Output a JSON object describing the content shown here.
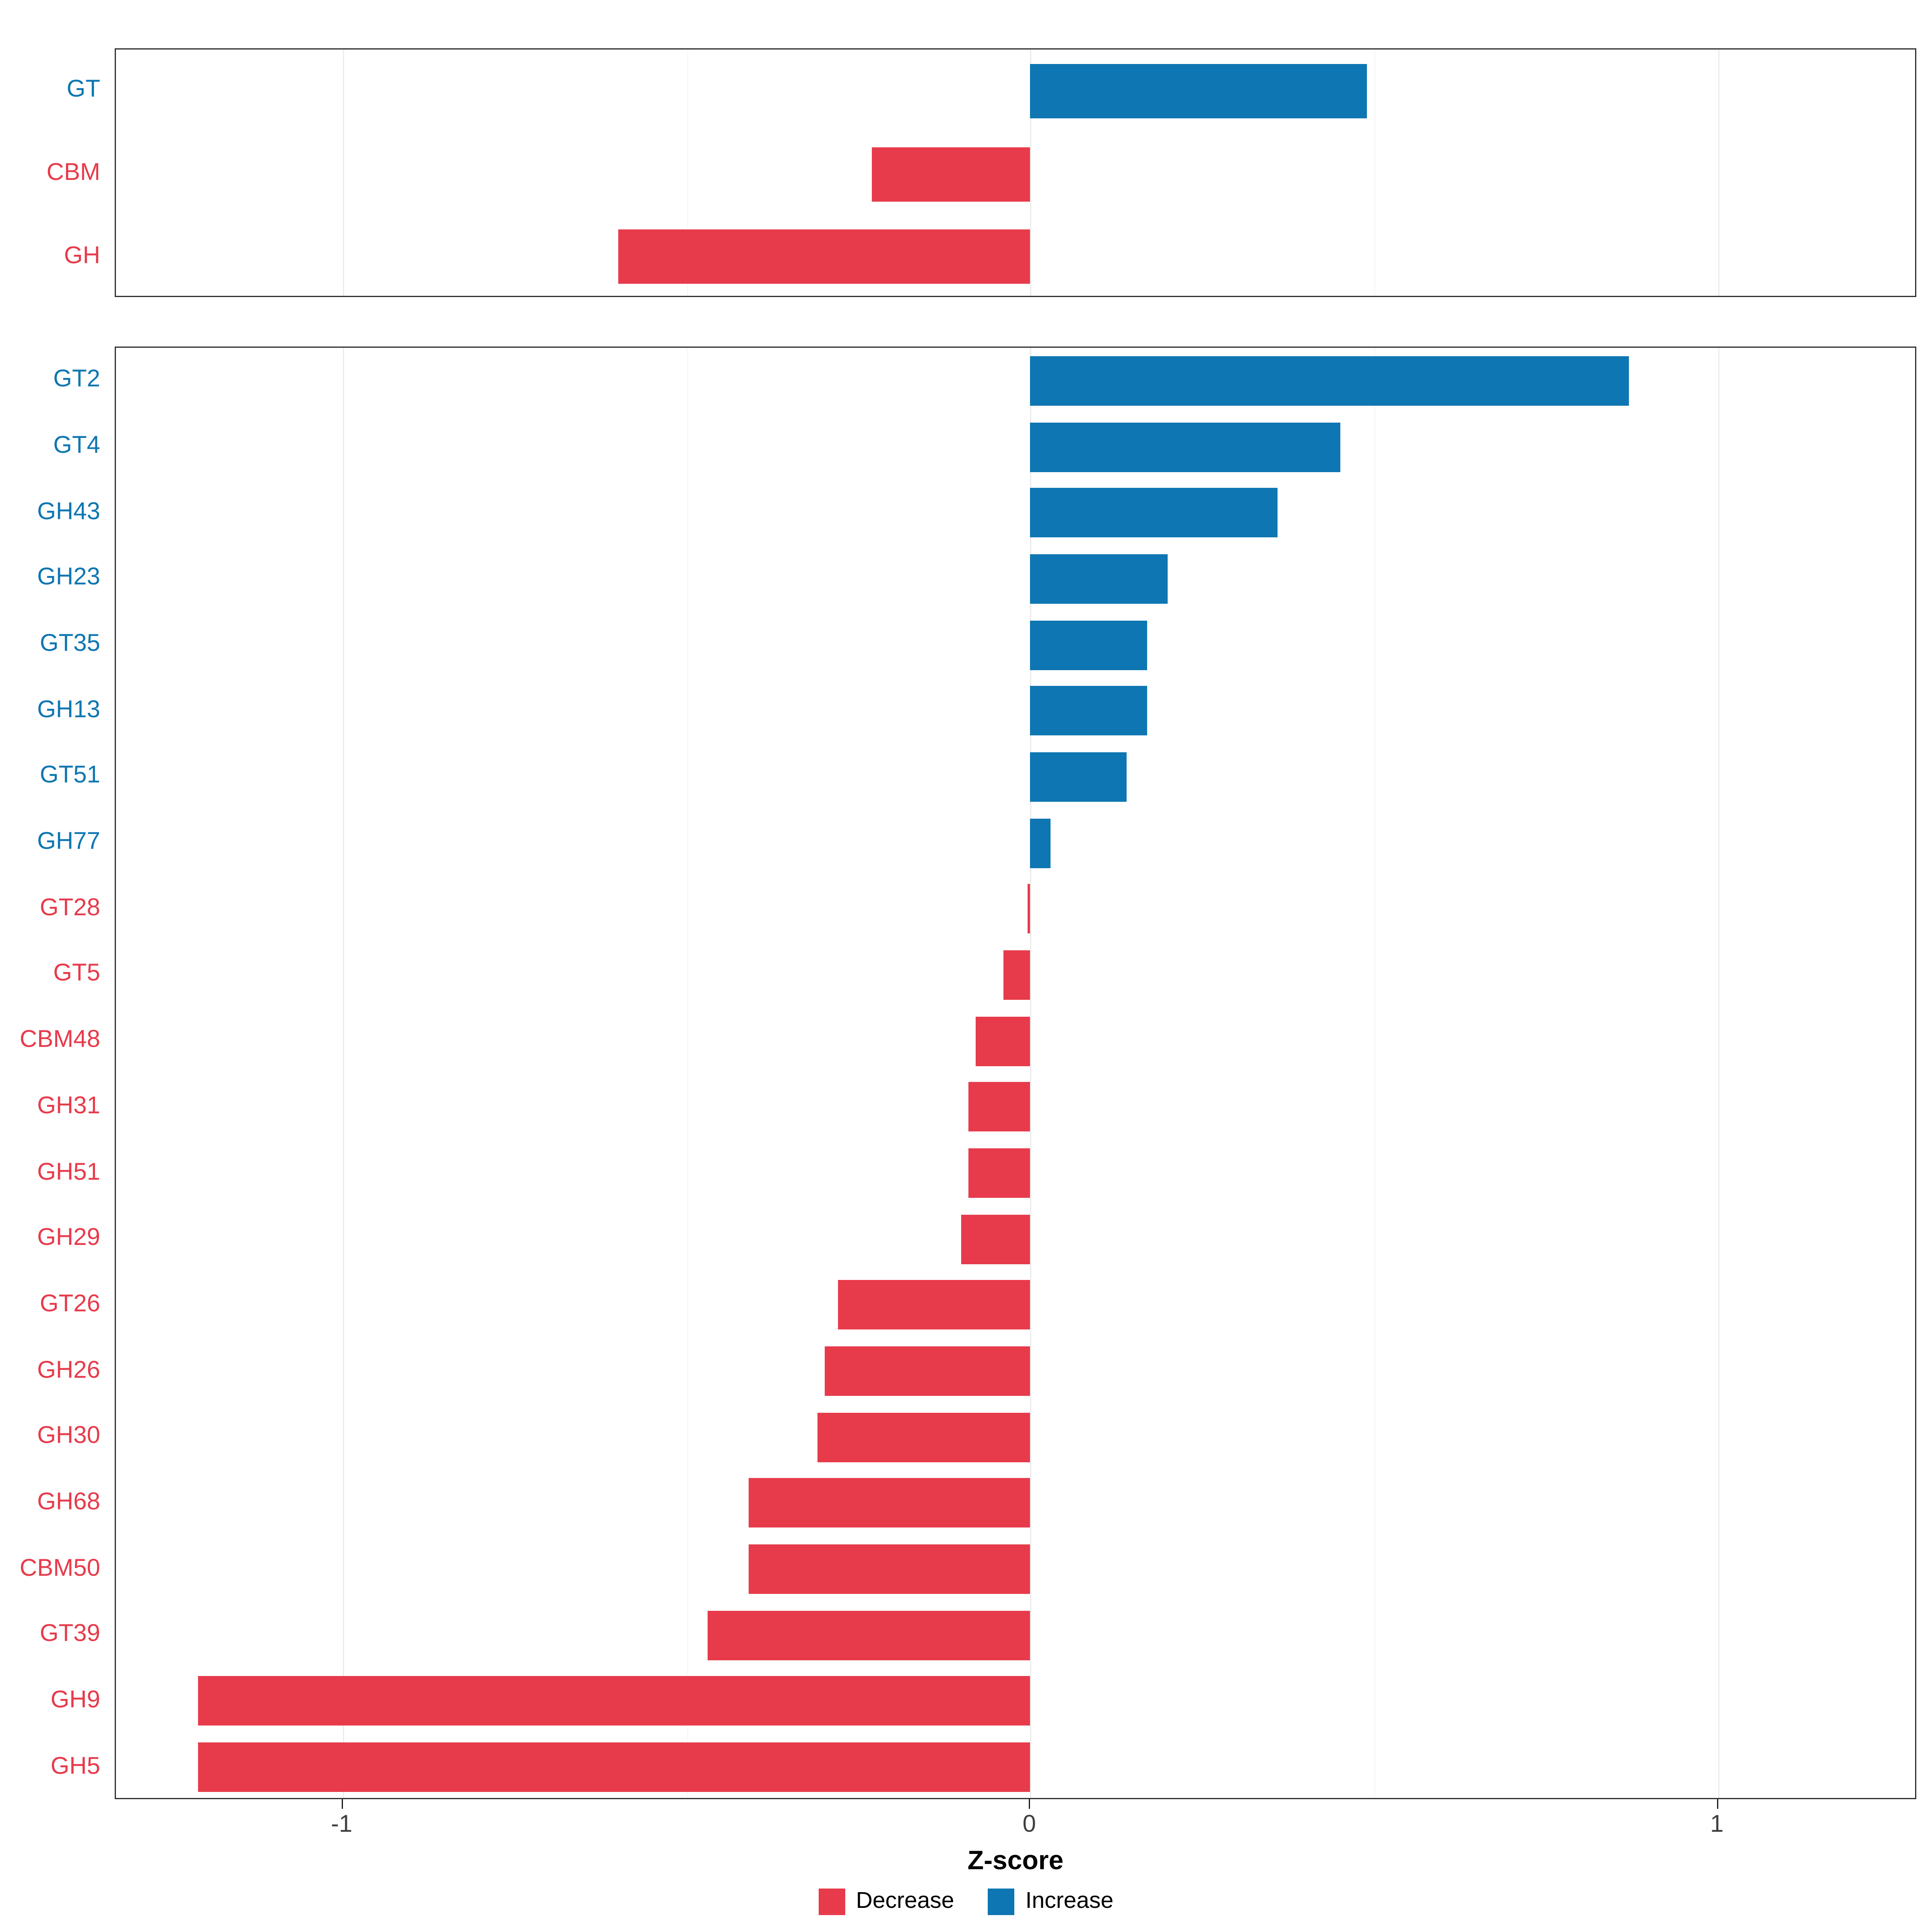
{
  "chart_data": {
    "type": "bar",
    "orientation": "horizontal",
    "title": "",
    "xlabel": "Z-score",
    "ylabel": "",
    "xlim": [
      -1.33,
      1.29
    ],
    "x_ticks": [
      -1,
      0,
      1
    ],
    "x_minor_ticks": [
      -0.5,
      0.5
    ],
    "grid": true,
    "legend_position": "bottom",
    "colors": {
      "decrease": "#E73B4B",
      "increase": "#0E76B2",
      "label_decrease": "#E73B4B",
      "label_increase": "#0E76B2",
      "axis_text": "#404040",
      "panel_border": "#2f2f2f"
    },
    "legend": [
      {
        "label": "Decrease",
        "color": "#E73B4B"
      },
      {
        "label": "Increase",
        "color": "#0E76B2"
      }
    ],
    "panels": [
      {
        "name": "summary",
        "categories": [
          "GT",
          "CBM",
          "GH"
        ],
        "values": [
          0.49,
          -0.23,
          -0.6
        ]
      },
      {
        "name": "families",
        "categories": [
          "GT2",
          "GT4",
          "GH43",
          "GH23",
          "GT35",
          "GH13",
          "GT51",
          "GH77",
          "GT28",
          "GT5",
          "CBM48",
          "GH31",
          "GH51",
          "GH29",
          "GT26",
          "GH26",
          "GH30",
          "GH68",
          "CBM50",
          "GT39",
          "GH9",
          "GH5"
        ],
        "values": [
          0.87,
          0.45,
          0.36,
          0.2,
          0.17,
          0.17,
          0.14,
          0.03,
          -0.005,
          -0.04,
          -0.08,
          -0.09,
          -0.09,
          -0.1,
          -0.28,
          -0.3,
          -0.31,
          -0.41,
          -0.41,
          -0.47,
          -1.21,
          -1.21
        ]
      }
    ]
  }
}
